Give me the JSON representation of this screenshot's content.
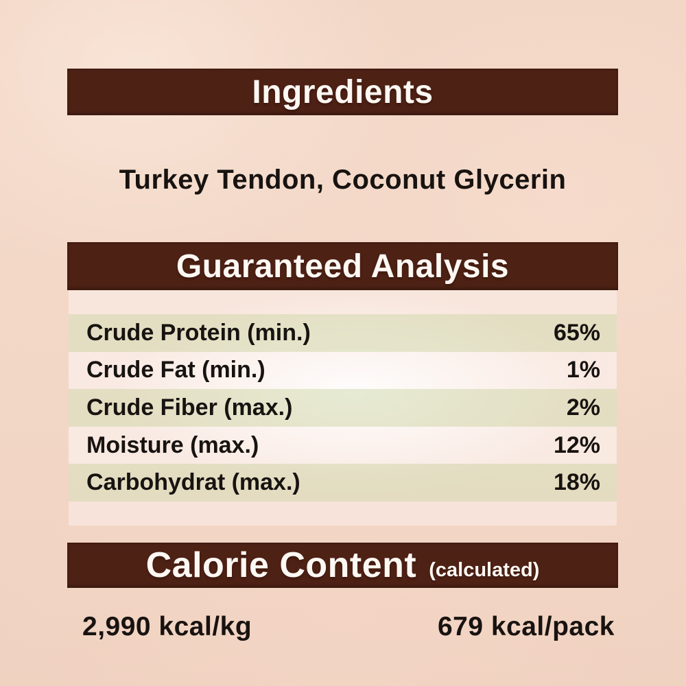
{
  "label": {
    "ingredients": {
      "header": "Ingredients",
      "list": "Turkey Tendon, Coconut Glycerin"
    },
    "guaranteed_analysis": {
      "header": "Guaranteed Analysis",
      "rows": [
        {
          "nutrient": "Crude Protein (min.)",
          "amount": "65%"
        },
        {
          "nutrient": "Crude Fat (min.)",
          "amount": "1%"
        },
        {
          "nutrient": "Crude Fiber (max.)",
          "amount": "2%"
        },
        {
          "nutrient": "Moisture (max.)",
          "amount": "12%"
        },
        {
          "nutrient": "Carbohydrat (max.)",
          "amount": "18%"
        }
      ]
    },
    "calorie_content": {
      "header": "Calorie Content",
      "qualifier": "(calculated)",
      "kcal_per_kg": "2,990 kcal/kg",
      "kcal_per_pack": "679 kcal/pack"
    },
    "colors": {
      "background": "#f2d6c6",
      "header_bar": "#4e2115",
      "header_text": "#fdf8f3",
      "stripe": "#e6e9d2",
      "body_text": "#171310"
    }
  }
}
